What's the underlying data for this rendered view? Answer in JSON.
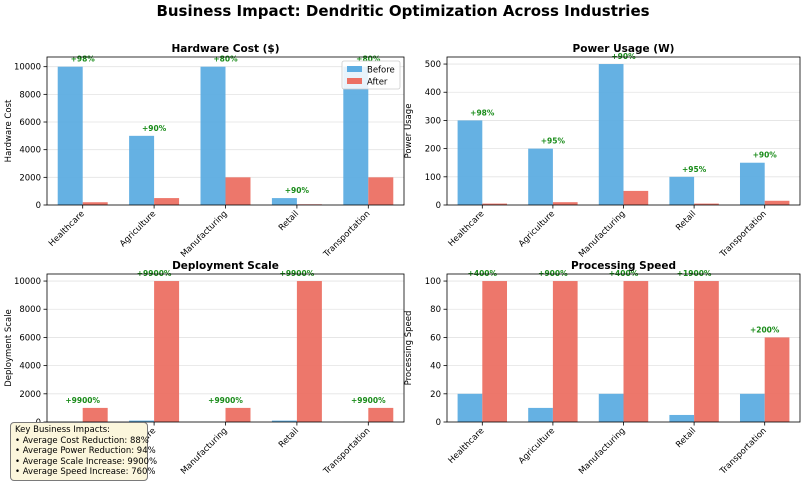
{
  "figure_title": "Business Impact: Dendritic Optimization Across Industries",
  "colors": {
    "before": "#5dade2",
    "after": "#ec7063",
    "annotation": "#1a8c1a"
  },
  "legend": {
    "location": "top-right",
    "entries": [
      "Before",
      "After"
    ]
  },
  "impacts_box": {
    "title": "Key Business Impacts:",
    "lines": [
      "• Average Cost Reduction: 88%",
      "• Average Power Reduction: 94%",
      "• Average Scale Increase: 9900%",
      "• Average Speed Increase: 760%"
    ]
  },
  "chart_data": [
    {
      "type": "bar",
      "title": "Hardware Cost ($)",
      "ylabel": "Hardware Cost",
      "xlabel": "",
      "categories": [
        "Healthcare",
        "Agriculture",
        "Manufacturing",
        "Retail",
        "Transportation"
      ],
      "series": [
        {
          "name": "Before",
          "values": [
            10000,
            5000,
            10000,
            500,
            10000
          ]
        },
        {
          "name": "After",
          "values": [
            200,
            500,
            2000,
            50,
            2000
          ]
        }
      ],
      "annotations": [
        "+98%",
        "+90%",
        "+80%",
        "+90%",
        "+80%"
      ],
      "ylim": [
        0,
        10700
      ],
      "yticks": [
        0,
        2000,
        4000,
        6000,
        8000,
        10000
      ],
      "grid": true,
      "legend": true
    },
    {
      "type": "bar",
      "title": "Power Usage (W)",
      "ylabel": "Power Usage",
      "xlabel": "",
      "categories": [
        "Healthcare",
        "Agriculture",
        "Manufacturing",
        "Retail",
        "Transportation"
      ],
      "series": [
        {
          "name": "Before",
          "values": [
            300,
            200,
            500,
            100,
            150
          ]
        },
        {
          "name": "After",
          "values": [
            5,
            10,
            50,
            5,
            15
          ]
        }
      ],
      "annotations": [
        "+98%",
        "+95%",
        "+90%",
        "+95%",
        "+90%"
      ],
      "ylim": [
        0,
        525
      ],
      "yticks": [
        0,
        100,
        200,
        300,
        400,
        500
      ],
      "grid": true,
      "legend": false
    },
    {
      "type": "bar",
      "title": "Deployment Scale",
      "ylabel": "Deployment Scale",
      "xlabel": "",
      "categories": [
        "Healthcare",
        "Agriculture",
        "Manufacturing",
        "Retail",
        "Transportation"
      ],
      "series": [
        {
          "name": "Before",
          "values": [
            10,
            100,
            10,
            100,
            10
          ]
        },
        {
          "name": "After",
          "values": [
            1000,
            10000,
            1000,
            10000,
            1000
          ]
        }
      ],
      "annotations": [
        "+9900%",
        "+9900%",
        "+9900%",
        "+9900%",
        "+9900%"
      ],
      "ylim": [
        0,
        10500
      ],
      "yticks": [
        0,
        2000,
        4000,
        6000,
        8000,
        10000
      ],
      "grid": true,
      "legend": false
    },
    {
      "type": "bar",
      "title": "Processing Speed",
      "ylabel": "Processing Speed",
      "xlabel": "",
      "categories": [
        "Healthcare",
        "Agriculture",
        "Manufacturing",
        "Retail",
        "Transportation"
      ],
      "series": [
        {
          "name": "Before",
          "values": [
            20,
            10,
            20,
            5,
            20
          ]
        },
        {
          "name": "After",
          "values": [
            100,
            100,
            100,
            100,
            60
          ]
        }
      ],
      "annotations": [
        "+400%",
        "+900%",
        "+400%",
        "+1900%",
        "+200%"
      ],
      "ylim": [
        0,
        105
      ],
      "yticks": [
        0,
        20,
        40,
        60,
        80,
        100
      ],
      "grid": true,
      "legend": false
    }
  ]
}
